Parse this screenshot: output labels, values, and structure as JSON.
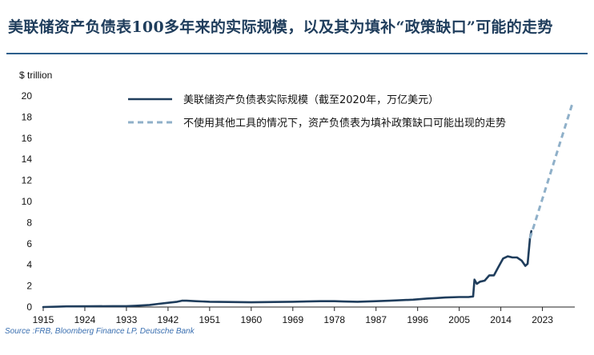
{
  "page": {
    "title": "美联储资产负债表100多年来的实际规模，以及其为填补“政策缺口”可能的走势"
  },
  "source": "Source :FRB, Bloomberg Finance LP, Deutsche Bank",
  "chart_data": {
    "type": "line",
    "title": "",
    "ylabel": "$ trillion",
    "xlabel": "",
    "ylim": [
      0,
      20
    ],
    "xlim": [
      1915,
      2030
    ],
    "yticks": [
      0,
      2,
      4,
      6,
      8,
      10,
      12,
      14,
      16,
      18,
      20
    ],
    "xticks": [
      1915,
      1924,
      1933,
      1942,
      1951,
      1960,
      1969,
      1978,
      1987,
      1996,
      2005,
      2014,
      2023
    ],
    "grid": false,
    "legend_position": "top-center",
    "series": [
      {
        "name": "美联储资产负债表实际规模（截至2020年，万亿美元）",
        "style": "solid",
        "color": "#1f3d5c",
        "points": [
          [
            1915,
            0.0
          ],
          [
            1918,
            0.03
          ],
          [
            1920,
            0.06
          ],
          [
            1925,
            0.07
          ],
          [
            1930,
            0.08
          ],
          [
            1933,
            0.08
          ],
          [
            1935,
            0.12
          ],
          [
            1938,
            0.2
          ],
          [
            1940,
            0.3
          ],
          [
            1942,
            0.4
          ],
          [
            1944,
            0.5
          ],
          [
            1945,
            0.6
          ],
          [
            1946,
            0.6
          ],
          [
            1948,
            0.55
          ],
          [
            1951,
            0.5
          ],
          [
            1955,
            0.48
          ],
          [
            1960,
            0.45
          ],
          [
            1965,
            0.48
          ],
          [
            1969,
            0.5
          ],
          [
            1975,
            0.55
          ],
          [
            1978,
            0.55
          ],
          [
            1980,
            0.52
          ],
          [
            1983,
            0.5
          ],
          [
            1987,
            0.55
          ],
          [
            1990,
            0.6
          ],
          [
            1995,
            0.7
          ],
          [
            1998,
            0.8
          ],
          [
            2000,
            0.85
          ],
          [
            2002,
            0.9
          ],
          [
            2005,
            0.95
          ],
          [
            2007,
            0.95
          ],
          [
            2008.0,
            1.0
          ],
          [
            2008.3,
            2.6
          ],
          [
            2008.8,
            2.2
          ],
          [
            2009.5,
            2.4
          ],
          [
            2010.5,
            2.5
          ],
          [
            2011.5,
            3.0
          ],
          [
            2012.5,
            3.0
          ],
          [
            2013.5,
            3.8
          ],
          [
            2014.5,
            4.6
          ],
          [
            2015.5,
            4.8
          ],
          [
            2016.5,
            4.7
          ],
          [
            2017.5,
            4.7
          ],
          [
            2018.5,
            4.4
          ],
          [
            2019.3,
            3.9
          ],
          [
            2019.8,
            4.1
          ],
          [
            2020.3,
            6.5
          ],
          [
            2020.6,
            7.2
          ]
        ]
      },
      {
        "name": "不使用其他工具的情况下，资产负债表为填补政策缺口可能出现的走势",
        "style": "dashed",
        "color": "#8fb0c9",
        "points": [
          [
            2020.3,
            6.5
          ],
          [
            2029.5,
            19.3
          ]
        ]
      }
    ]
  }
}
